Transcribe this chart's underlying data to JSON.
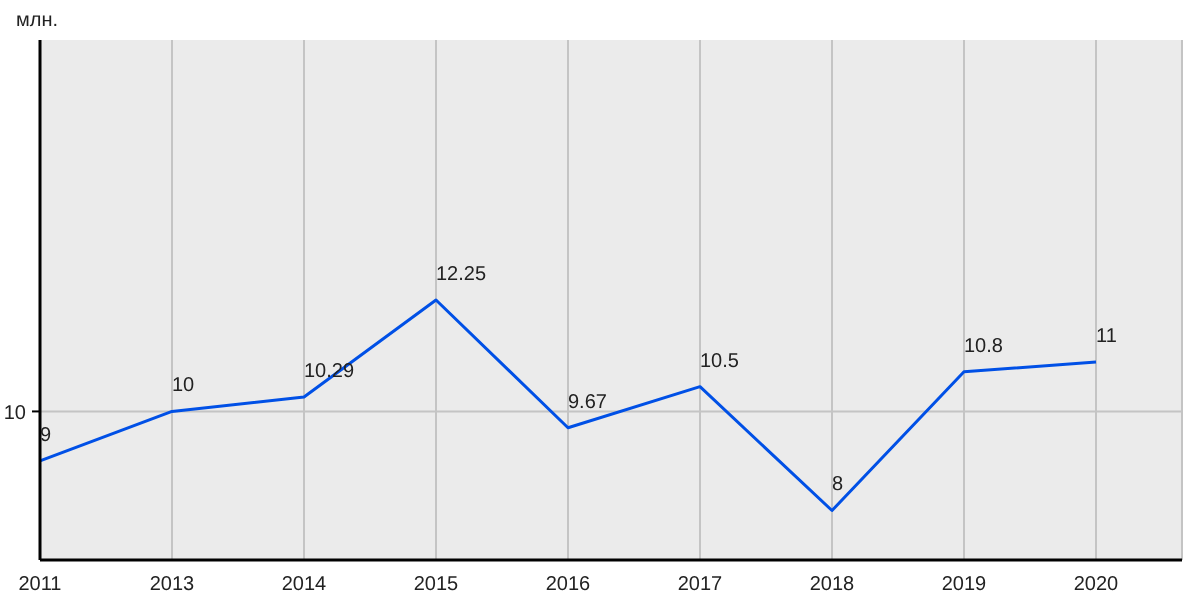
{
  "chart_data": {
    "type": "line",
    "ylabel": "млн.",
    "categories": [
      "2011",
      "2013",
      "2014",
      "2015",
      "2016",
      "2017",
      "2018",
      "2019",
      "2020"
    ],
    "series": [
      {
        "color": "#0050e6",
        "values": [
          9,
          10,
          10.29,
          12.25,
          9.67,
          10.5,
          8,
          10.8,
          11
        ]
      }
    ],
    "ylim": [
      7,
      17.5
    ],
    "ref_lines": [
      {
        "axis": "y",
        "value": 10,
        "label": "10",
        "color": "#c4c4c4"
      }
    ],
    "grid": "x",
    "data_labels": true,
    "legend": false,
    "marker": "none"
  }
}
